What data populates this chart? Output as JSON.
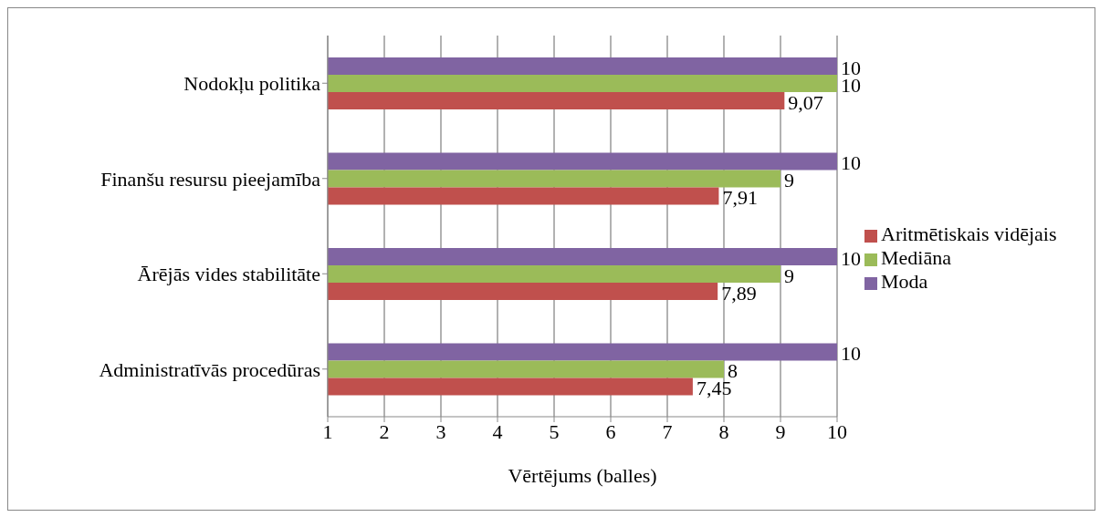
{
  "chart_data": {
    "type": "bar",
    "orientation": "horizontal",
    "xlabel": "Vērtējums (balles)",
    "categories": [
      "Nodokļu politika",
      "Finanšu resursu pieejamība",
      "Ārējās vides stabilitāte",
      "Administratīvās procedūras"
    ],
    "series": [
      {
        "name": "Moda",
        "color": "#8064a2",
        "values": [
          10,
          10,
          10,
          10
        ],
        "value_labels": [
          "10",
          "10",
          "10",
          "10"
        ]
      },
      {
        "name": "Mediāna",
        "color": "#9bbb59",
        "values": [
          10,
          9,
          9,
          8
        ],
        "value_labels": [
          "10",
          "9",
          "9",
          "8"
        ]
      },
      {
        "name": "Aritmētiskais vidējais",
        "color": "#c0504d",
        "values": [
          9.07,
          7.91,
          7.89,
          7.45
        ],
        "value_labels": [
          "9,07",
          "7,91",
          "7,89",
          "7,45"
        ]
      }
    ],
    "xlim": [
      1,
      10
    ],
    "xticks": [
      1,
      2,
      3,
      4,
      5,
      6,
      7,
      8,
      9,
      10
    ],
    "grid": "x",
    "legend": "right"
  }
}
